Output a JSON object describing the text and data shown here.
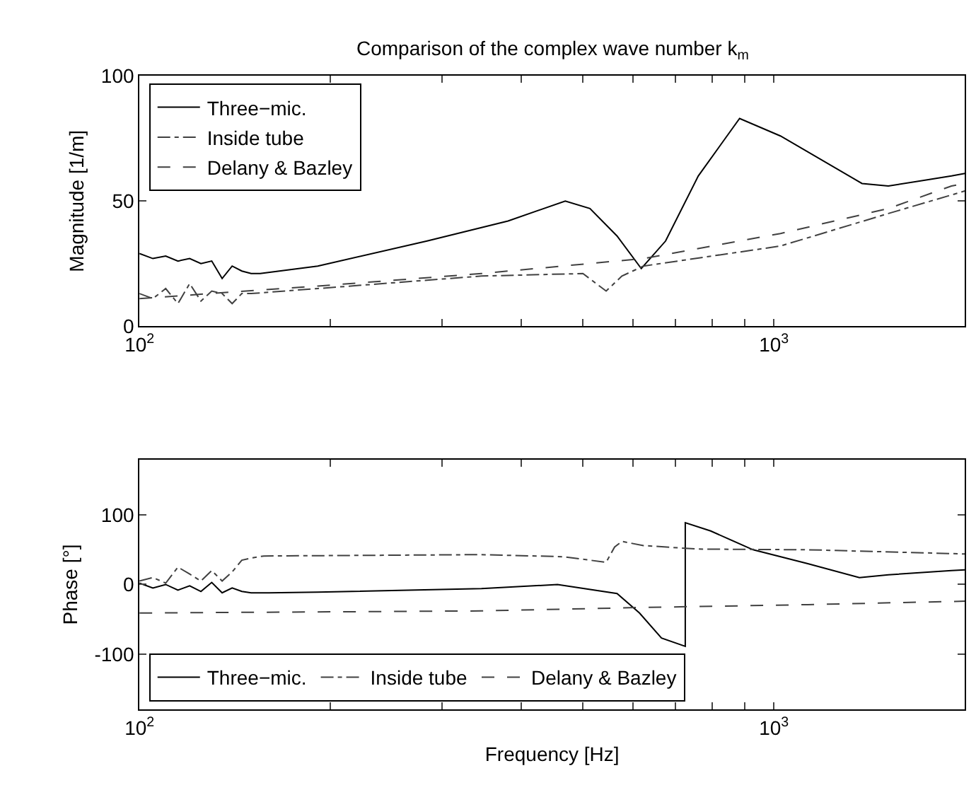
{
  "chart_data": [
    {
      "type": "line",
      "title": "Comparison of the complex wave number k$_{m}$",
      "ylabel": "Magnitude [1/m]",
      "log": "x",
      "legend": "top left",
      "xlim": [
        100,
        2000
      ],
      "xticks": [
        {
          "value": 100,
          "label": "10$^{2}$"
        },
        {
          "value": 200,
          "label": null
        },
        {
          "value": 300,
          "label": null
        },
        {
          "value": 400,
          "label": null
        },
        {
          "value": 500,
          "label": null
        },
        {
          "value": 600,
          "label": null
        },
        {
          "value": 700,
          "label": null
        },
        {
          "value": 800,
          "label": null
        },
        {
          "value": 900,
          "label": null
        },
        {
          "value": 1000,
          "label": "10$^{3}$"
        }
      ],
      "ylim": [
        0,
        100
      ],
      "yticks": [
        0,
        50,
        100
      ],
      "series": [
        {
          "name": "Three−mic.",
          "color": "#000000",
          "line_style": "solid",
          "x": [
            100,
            105,
            110,
            115,
            120,
            125,
            130,
            135,
            140,
            145,
            150,
            155,
            191,
            284,
            381,
            469,
            513,
            566,
            618,
            675,
            760,
            883,
            1024,
            1377,
            1515,
            1905,
            2000
          ],
          "values": [
            29,
            27,
            28,
            26,
            27,
            25,
            26,
            19,
            24,
            22,
            21,
            21,
            24,
            34,
            42,
            50,
            47,
            36,
            23,
            34,
            60,
            83,
            76,
            57,
            56,
            60,
            61
          ]
        },
        {
          "name": "Inside tube",
          "color": "#404040",
          "line_style": "dashdot",
          "x": [
            100,
            105,
            110,
            115,
            120,
            125,
            130,
            135,
            140,
            145,
            150,
            191,
            346,
            500,
            544,
            576,
            623,
            1024,
            1515,
            2000
          ],
          "values": [
            13,
            11,
            15,
            9,
            17,
            10,
            14,
            13,
            9,
            13,
            13,
            15,
            20,
            21,
            14,
            20,
            24,
            32,
            45,
            54
          ]
        },
        {
          "name": "Delany & Bazley",
          "color": "#404040",
          "line_style": "dashed",
          "x": [
            100,
            191,
            346,
            623,
            1024,
            1515,
            1905,
            2000
          ],
          "values": [
            11,
            16,
            21,
            27,
            37,
            47,
            56,
            57
          ]
        }
      ]
    },
    {
      "type": "line",
      "xlabel": "Frequency [Hz]",
      "ylabel": "Phase [°]",
      "log": "x",
      "legend": "bottom",
      "xlim": [
        100,
        2000
      ],
      "xticks": [
        {
          "value": 100,
          "label": "10$^{2}$"
        },
        {
          "value": 200,
          "label": null
        },
        {
          "value": 300,
          "label": null
        },
        {
          "value": 400,
          "label": null
        },
        {
          "value": 500,
          "label": null
        },
        {
          "value": 600,
          "label": null
        },
        {
          "value": 700,
          "label": null
        },
        {
          "value": 800,
          "label": null
        },
        {
          "value": 900,
          "label": null
        },
        {
          "value": 1000,
          "label": "10$^{3}$"
        }
      ],
      "ylim": [
        -180,
        180
      ],
      "yticks": [
        -100,
        0,
        100
      ],
      "series": [
        {
          "name": "Three−mic.",
          "color": "#000000",
          "line_style": "solid",
          "x": [
            100,
            105,
            110,
            115,
            120,
            125,
            130,
            135,
            140,
            145,
            150,
            160,
            191,
            346,
            456,
            566,
            614,
            665,
            725,
            725,
            795,
            927,
            1131,
            1364,
            1515,
            1905,
            2000
          ],
          "values": [
            2,
            -5,
            0,
            -8,
            -2,
            -10,
            3,
            -12,
            -5,
            -10,
            -12,
            -12,
            -11,
            -6,
            0,
            -13,
            -41,
            -77,
            -89,
            89,
            77,
            50,
            30,
            10,
            14,
            20,
            21
          ]
        },
        {
          "name": "Inside tube",
          "color": "#404040",
          "line_style": "dashdot",
          "x": [
            100,
            105,
            110,
            115,
            120,
            125,
            130,
            135,
            140,
            145,
            150,
            157,
            346,
            465,
            544,
            561,
            576,
            623,
            760,
            1131,
            2000
          ],
          "values": [
            5,
            10,
            2,
            25,
            15,
            5,
            20,
            5,
            18,
            35,
            38,
            41,
            43,
            40,
            32,
            54,
            62,
            56,
            51,
            50,
            44
          ]
        },
        {
          "name": "Delany & Bazley",
          "color": "#404040",
          "line_style": "dashed",
          "x": [
            100,
            346,
            623,
            1131,
            2000
          ],
          "values": [
            -41,
            -38,
            -33,
            -29,
            -24
          ]
        }
      ]
    }
  ]
}
